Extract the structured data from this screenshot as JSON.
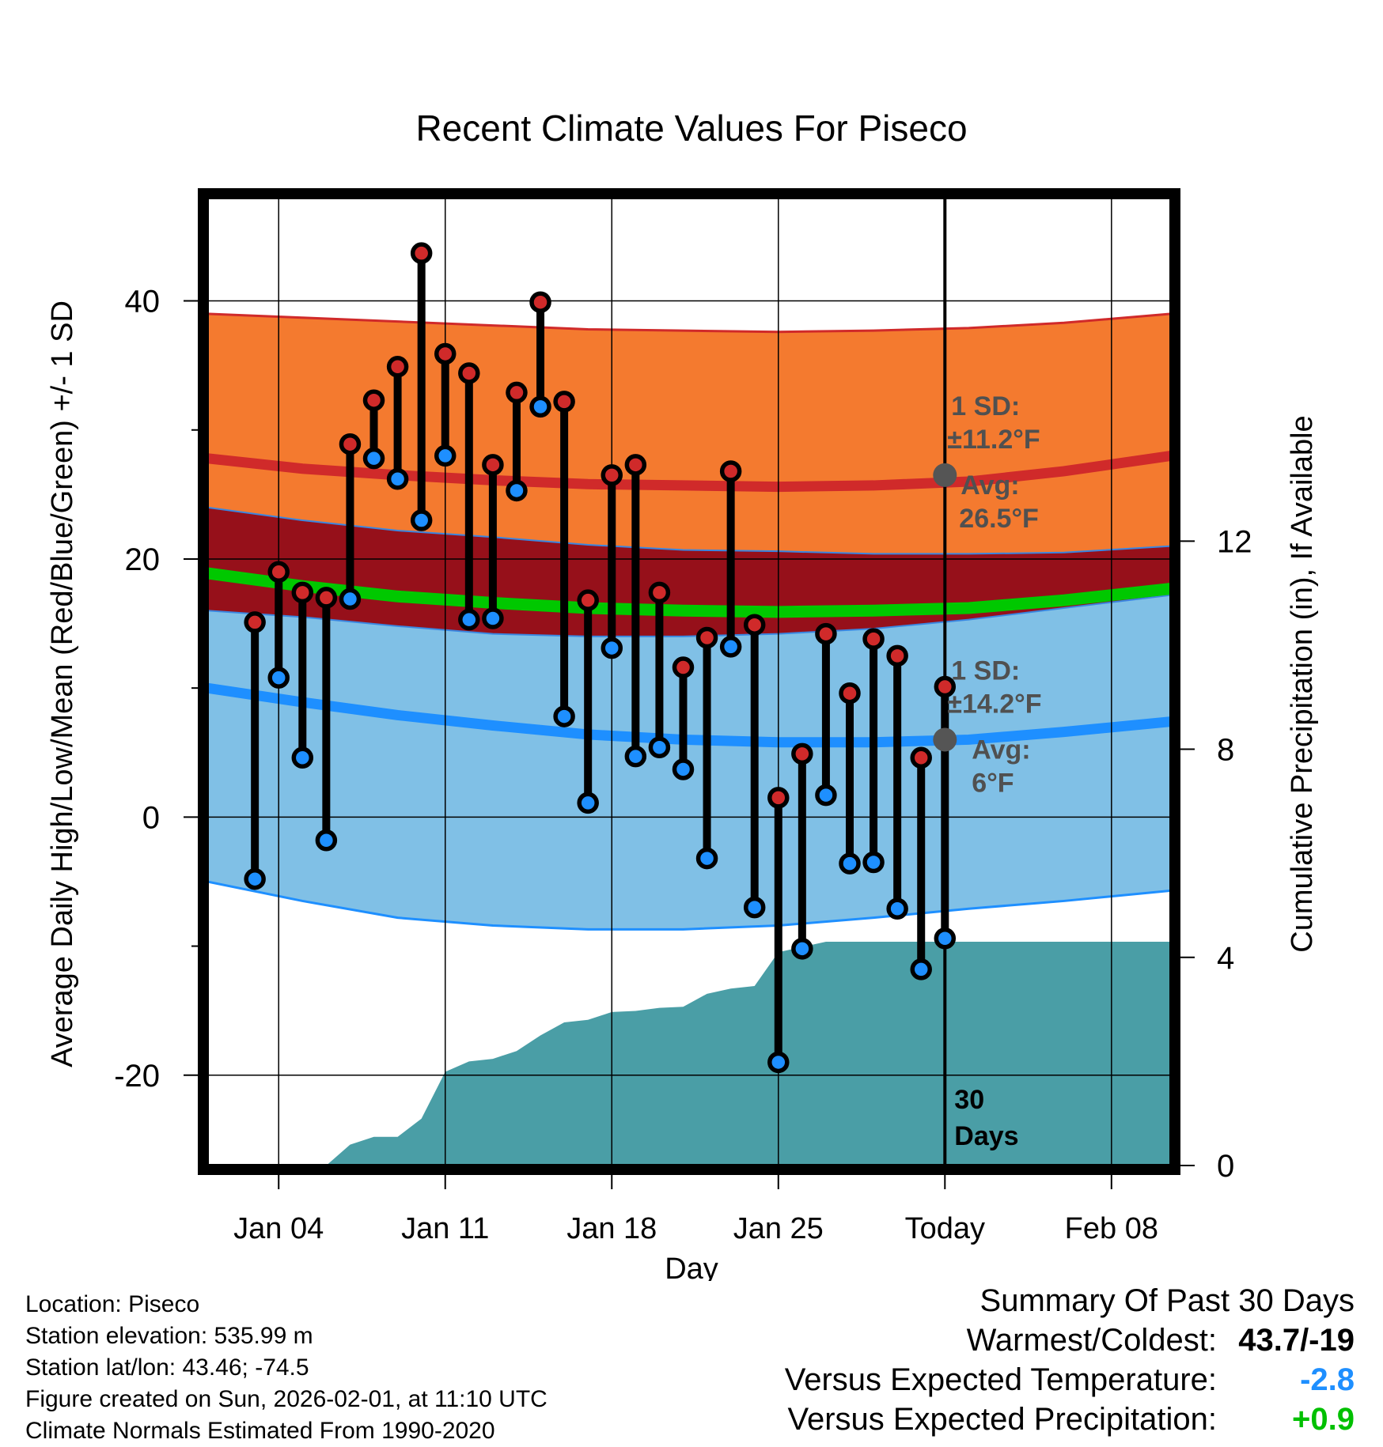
{
  "title": "Recent Climate Values For Piseco",
  "colors": {
    "high": "#d02a2a",
    "low": "#1e8fff",
    "mean": "#00c800",
    "high_band": "#f47a2f",
    "low_band": "#80c0e6",
    "overlap_band": "#96101a",
    "precip": "#4a9ea6",
    "marker": "#555555",
    "anomaly_temp": "#1e8fff",
    "anomaly_precip": "#00c000"
  },
  "chart_data": {
    "type": "line",
    "title": "Recent Climate Values For Piseco",
    "xlabel": "Day",
    "ylabel": "Average Daily High/Low/Mean (Red/Blue/Green) +/- 1 SD",
    "y2label": "Cumulative Precipitation (in), If Available",
    "xlim": [
      1.0,
      41.5
    ],
    "ylim": [
      -27,
      48
    ],
    "y2lim": [
      0,
      18.6
    ],
    "xticks": [
      {
        "x": 4,
        "label": "Jan 04"
      },
      {
        "x": 11,
        "label": "Jan 11"
      },
      {
        "x": 18,
        "label": "Jan 18"
      },
      {
        "x": 25,
        "label": "Jan 25"
      },
      {
        "x": 32,
        "label": "Today"
      },
      {
        "x": 39,
        "label": "Feb 08"
      }
    ],
    "yticks": [
      -20,
      0,
      20,
      40
    ],
    "yticks_labels": [
      "-20",
      "0",
      "20",
      "40"
    ],
    "yminor": [
      -10,
      10,
      30
    ],
    "y2ticks": [
      0,
      4,
      8,
      12
    ],
    "y2ticks_labels": [
      "0",
      "4",
      "8",
      "12"
    ],
    "grid": true,
    "today_x": 32,
    "days_label": [
      "30",
      "Days"
    ],
    "normals": {
      "x": [
        1.0,
        5,
        9,
        13,
        17,
        21,
        25,
        29,
        33,
        37,
        41.5
      ],
      "high_avg": [
        27.8,
        27.0,
        26.5,
        26.1,
        25.8,
        25.7,
        25.6,
        25.7,
        26.0,
        26.8,
        28.0
      ],
      "high_plus": [
        39.0,
        38.7,
        38.4,
        38.1,
        37.8,
        37.7,
        37.6,
        37.7,
        37.9,
        38.3,
        39.0
      ],
      "high_minus": [
        24.0,
        23.0,
        22.2,
        21.7,
        21.1,
        20.7,
        20.6,
        20.4,
        20.4,
        20.5,
        21.0
      ],
      "low_avg": [
        10.0,
        8.9,
        7.9,
        7.1,
        6.4,
        6.0,
        5.8,
        5.8,
        6.0,
        6.6,
        7.4
      ],
      "low_plus": [
        16.0,
        15.5,
        14.8,
        14.2,
        14.0,
        14.0,
        14.2,
        14.6,
        15.3,
        16.2,
        17.2
      ],
      "low_minus": [
        -5.0,
        -6.5,
        -7.8,
        -8.4,
        -8.7,
        -8.7,
        -8.4,
        -7.8,
        -7.1,
        -6.5,
        -5.7
      ],
      "mean": [
        18.9,
        17.9,
        17.1,
        16.6,
        16.2,
        16.0,
        15.9,
        16.0,
        16.2,
        16.8,
        17.7
      ]
    },
    "temps": [
      {
        "x": 3,
        "high": 15.1,
        "low": -4.8
      },
      {
        "x": 4,
        "high": 19.0,
        "low": 10.8
      },
      {
        "x": 5,
        "high": 17.4,
        "low": 4.6
      },
      {
        "x": 6,
        "high": 17.0,
        "low": -1.8
      },
      {
        "x": 7,
        "high": 28.9,
        "low": 16.9
      },
      {
        "x": 8,
        "high": 32.3,
        "low": 27.8
      },
      {
        "x": 9,
        "high": 34.9,
        "low": 26.2
      },
      {
        "x": 10,
        "high": 43.7,
        "low": 23.0
      },
      {
        "x": 11,
        "high": 35.9,
        "low": 28.0
      },
      {
        "x": 12,
        "high": 34.4,
        "low": 15.3
      },
      {
        "x": 13,
        "high": 27.3,
        "low": 15.4
      },
      {
        "x": 14,
        "high": 32.9,
        "low": 25.3
      },
      {
        "x": 15,
        "high": 39.9,
        "low": 31.8
      },
      {
        "x": 16,
        "high": 32.2,
        "low": 7.8
      },
      {
        "x": 17,
        "high": 16.8,
        "low": 1.1
      },
      {
        "x": 18,
        "high": 26.5,
        "low": 13.1
      },
      {
        "x": 19,
        "high": 27.3,
        "low": 4.7
      },
      {
        "x": 20,
        "high": 17.4,
        "low": 5.4
      },
      {
        "x": 21,
        "high": 11.6,
        "low": 3.7
      },
      {
        "x": 22,
        "high": 13.9,
        "low": -3.2
      },
      {
        "x": 23,
        "high": 26.8,
        "low": 13.2
      },
      {
        "x": 24,
        "high": 14.9,
        "low": -7.0
      },
      {
        "x": 25,
        "high": 1.5,
        "low": -19.0
      },
      {
        "x": 26,
        "high": 4.9,
        "low": -10.2
      },
      {
        "x": 27,
        "high": 14.2,
        "low": 1.7
      },
      {
        "x": 28,
        "high": 9.6,
        "low": -3.6
      },
      {
        "x": 29,
        "high": 13.8,
        "low": -3.5
      },
      {
        "x": 30,
        "high": 12.5,
        "low": -7.1
      },
      {
        "x": 31,
        "high": 4.6,
        "low": -11.8
      },
      {
        "x": 32,
        "high": 10.1,
        "low": -9.4
      }
    ],
    "precip": {
      "x": [
        6.0,
        7,
        8,
        9,
        10,
        11,
        12,
        13,
        14,
        15,
        16,
        17,
        18,
        19,
        20,
        21,
        22,
        23,
        24,
        25,
        26,
        27,
        28,
        29,
        30,
        31,
        32,
        41.5
      ],
      "y": [
        0,
        0.4,
        0.55,
        0.55,
        0.9,
        1.8,
        2.0,
        2.05,
        2.2,
        2.5,
        2.75,
        2.8,
        2.95,
        2.97,
        3.03,
        3.05,
        3.3,
        3.4,
        3.45,
        4.1,
        4.2,
        4.3,
        4.3,
        4.3,
        4.3,
        4.3,
        4.3,
        4.3
      ]
    },
    "annotations": {
      "high_sd_label": [
        "1 SD:",
        "±11.2°F"
      ],
      "high_avg_label": [
        "Avg:",
        "26.5°F"
      ],
      "low_sd_label": [
        "1 SD:",
        "±14.2°F"
      ],
      "low_avg_label": [
        "Avg:",
        "6°F"
      ],
      "high_avg_marker": 26.5,
      "low_avg_marker": 6.0
    }
  },
  "info": {
    "location": "Location: Piseco",
    "elevation": "Station elevation: 535.99 m",
    "latlon": "Station lat/lon: 43.46; -74.5",
    "created": "Figure created on Sun, 2026-02-01, at 11:10 UTC",
    "normals": "Climate Normals Estimated From 1990-2020"
  },
  "summary": {
    "heading": "Summary Of Past 30 Days",
    "warm_cold_label": "Warmest/Coldest:",
    "warm_cold_value": "43.7/-19",
    "temp_label": "Versus Expected Temperature:",
    "temp_value": "-2.8",
    "precip_label": "Versus Expected Precipitation:",
    "precip_value": "+0.9"
  }
}
